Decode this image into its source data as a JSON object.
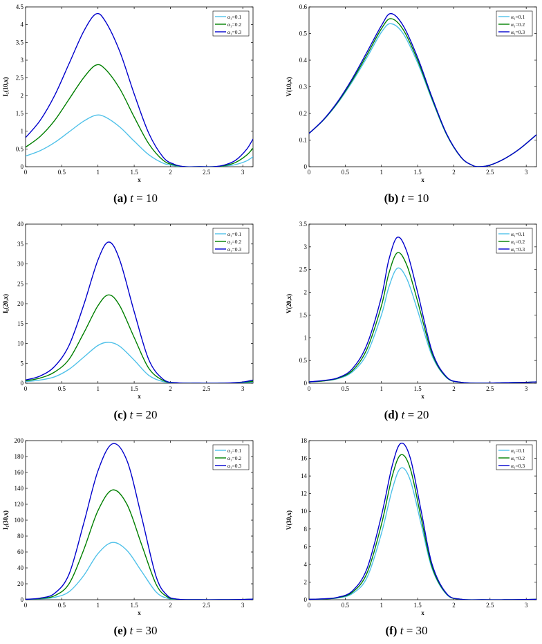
{
  "figure": {
    "colors": {
      "alpha_0_1": "#4fc1e9",
      "alpha_0_2": "#007f00",
      "alpha_0_3": "#0000cc"
    }
  },
  "chart_data": [
    {
      "id": "a",
      "type": "line",
      "ylabel": "I₁(10,x)",
      "xlabel": "x",
      "xlim": [
        0,
        3.1416
      ],
      "ylim": [
        0,
        4.5
      ],
      "xticks": [
        "0",
        "0.5",
        "1",
        "1.5",
        "2",
        "2.5",
        "3"
      ],
      "yticks": [
        "0",
        "0.5",
        "1",
        "1.5",
        "2",
        "2.5",
        "3",
        "3.5",
        "4",
        "4.5"
      ],
      "legend": [
        "α₁=0.1",
        "α₁=0.2",
        "α₁=0.3"
      ],
      "legend_position": "top-right",
      "caption": {
        "label": "(a)",
        "var": "t",
        "eq": "= 10"
      },
      "x": [
        0,
        0.2,
        0.4,
        0.6,
        0.8,
        0.97,
        1.1,
        1.3,
        1.5,
        1.7,
        1.9,
        2.05,
        2.2,
        2.4,
        2.6,
        2.75,
        2.9,
        3.05,
        3.1416
      ],
      "series": [
        {
          "name": "α₁=0.1",
          "values": [
            0.3,
            0.45,
            0.68,
            0.98,
            1.28,
            1.45,
            1.4,
            1.12,
            0.72,
            0.34,
            0.1,
            0.03,
            0.0,
            0.0,
            0.0,
            0.02,
            0.06,
            0.16,
            0.28
          ]
        },
        {
          "name": "α₁=0.2",
          "values": [
            0.55,
            0.85,
            1.3,
            1.9,
            2.5,
            2.86,
            2.75,
            2.2,
            1.4,
            0.65,
            0.18,
            0.05,
            0.0,
            0.0,
            0.0,
            0.03,
            0.12,
            0.32,
            0.52
          ]
        },
        {
          "name": "α₁=0.3",
          "values": [
            0.82,
            1.3,
            2.0,
            2.9,
            3.8,
            4.3,
            4.1,
            3.25,
            2.05,
            0.95,
            0.27,
            0.07,
            0.0,
            0.0,
            0.0,
            0.05,
            0.18,
            0.48,
            0.78
          ]
        }
      ]
    },
    {
      "id": "b",
      "type": "line",
      "ylabel": "V(10,x)",
      "xlabel": "x",
      "xlim": [
        0,
        3.1416
      ],
      "ylim": [
        0,
        0.6
      ],
      "xticks": [
        "0",
        "0.5",
        "1",
        "1.5",
        "2",
        "2.5",
        "3"
      ],
      "yticks": [
        "0",
        "0.1",
        "0.2",
        "0.3",
        "0.4",
        "0.5",
        "0.6"
      ],
      "legend": [
        "α₁=0.1",
        "α₁=0.2",
        "α₁=0.3"
      ],
      "legend_position": "top-right",
      "caption": {
        "label": "(b)",
        "var": "t",
        "eq": "= 10"
      },
      "x": [
        0,
        0.2,
        0.4,
        0.6,
        0.8,
        1.0,
        1.13,
        1.3,
        1.5,
        1.7,
        1.9,
        2.1,
        2.25,
        2.35,
        2.5,
        2.7,
        2.9,
        3.1416
      ],
      "series": [
        {
          "name": "α₁=0.1",
          "values": [
            0.125,
            0.175,
            0.24,
            0.32,
            0.41,
            0.505,
            0.537,
            0.5,
            0.39,
            0.25,
            0.12,
            0.035,
            0.006,
            0.0,
            0.006,
            0.03,
            0.065,
            0.12
          ]
        },
        {
          "name": "α₁=0.2",
          "values": [
            0.125,
            0.176,
            0.243,
            0.326,
            0.42,
            0.518,
            0.556,
            0.515,
            0.4,
            0.255,
            0.122,
            0.035,
            0.006,
            0.0,
            0.006,
            0.03,
            0.065,
            0.12
          ]
        },
        {
          "name": "α₁=0.3",
          "values": [
            0.125,
            0.177,
            0.246,
            0.332,
            0.43,
            0.53,
            0.575,
            0.53,
            0.41,
            0.26,
            0.124,
            0.036,
            0.006,
            0.0,
            0.006,
            0.03,
            0.065,
            0.12
          ]
        }
      ]
    },
    {
      "id": "c",
      "type": "line",
      "ylabel": "I₁(20,x)",
      "xlabel": "x",
      "xlim": [
        0,
        3.1416
      ],
      "ylim": [
        0,
        40
      ],
      "xticks": [
        "0",
        "0.5",
        "1",
        "1.5",
        "2",
        "2.5",
        "3"
      ],
      "yticks": [
        "0",
        "5",
        "10",
        "15",
        "20",
        "25",
        "30",
        "35",
        "40"
      ],
      "legend": [
        "α₁=0.1",
        "α₁=0.2",
        "α₁=0.3"
      ],
      "legend_position": "top-right",
      "caption": {
        "label": "(c)",
        "var": "t",
        "eq": "= 20"
      },
      "x": [
        0,
        0.2,
        0.4,
        0.6,
        0.8,
        1.0,
        1.15,
        1.3,
        1.5,
        1.7,
        1.9,
        2.1,
        2.4,
        2.7,
        3.0,
        3.1416
      ],
      "series": [
        {
          "name": "α₁=0.1",
          "values": [
            0.4,
            0.8,
            1.6,
            3.5,
            6.5,
            9.5,
            10.3,
            9.3,
            5.8,
            2.0,
            0.4,
            0.05,
            0.0,
            0.0,
            0.1,
            0.3
          ]
        },
        {
          "name": "α₁=0.2",
          "values": [
            0.6,
            1.3,
            2.8,
            6.0,
            12.5,
            19.5,
            22.2,
            19.5,
            11.5,
            3.8,
            0.7,
            0.08,
            0.0,
            0.0,
            0.2,
            0.5
          ]
        },
        {
          "name": "α₁=0.3",
          "values": [
            0.8,
            1.8,
            4.2,
            9.5,
            19.5,
            31.0,
            35.5,
            31.0,
            18.0,
            6.0,
            1.0,
            0.1,
            0.0,
            0.0,
            0.3,
            0.8
          ]
        }
      ]
    },
    {
      "id": "d",
      "type": "line",
      "ylabel": "V(20,x)",
      "xlabel": "x",
      "xlim": [
        0,
        3.1416
      ],
      "ylim": [
        0,
        3.5
      ],
      "xticks": [
        "0",
        "0.5",
        "1",
        "1.5",
        "2",
        "2.5",
        "3"
      ],
      "yticks": [
        "0",
        "0.5",
        "1",
        "1.5",
        "2",
        "2.5",
        "3",
        "3.5"
      ],
      "legend": [
        "α₁=0.1",
        "α₁=0.2",
        "α₁=0.3"
      ],
      "legend_position": "top-right",
      "caption": {
        "label": "(d)",
        "var": "t",
        "eq": "= 20"
      },
      "x": [
        0,
        0.2,
        0.4,
        0.6,
        0.8,
        1.0,
        1.1,
        1.22,
        1.35,
        1.5,
        1.7,
        1.9,
        2.1,
        2.4,
        2.7,
        3.0,
        3.1416
      ],
      "series": [
        {
          "name": "α₁=0.1",
          "values": [
            0.03,
            0.05,
            0.1,
            0.25,
            0.65,
            1.5,
            2.1,
            2.53,
            2.3,
            1.6,
            0.6,
            0.12,
            0.02,
            0.0,
            0.01,
            0.02,
            0.03
          ]
        },
        {
          "name": "α₁=0.2",
          "values": [
            0.03,
            0.05,
            0.11,
            0.28,
            0.75,
            1.7,
            2.4,
            2.87,
            2.6,
            1.8,
            0.65,
            0.13,
            0.02,
            0.0,
            0.01,
            0.02,
            0.03
          ]
        },
        {
          "name": "α₁=0.3",
          "values": [
            0.03,
            0.06,
            0.12,
            0.32,
            0.85,
            1.9,
            2.7,
            3.21,
            2.9,
            2.0,
            0.7,
            0.14,
            0.02,
            0.0,
            0.01,
            0.02,
            0.03
          ]
        }
      ]
    },
    {
      "id": "e",
      "type": "line",
      "ylabel": "I₁(30,x)",
      "xlabel": "x",
      "xlim": [
        0,
        3.1416
      ],
      "ylim": [
        0,
        200
      ],
      "xticks": [
        "0",
        "0.5",
        "1",
        "1.5",
        "2",
        "2.5",
        "3"
      ],
      "yticks": [
        "0",
        "20",
        "40",
        "60",
        "80",
        "100",
        "120",
        "140",
        "160",
        "180",
        "200"
      ],
      "legend": [
        "α₁=0.1",
        "α₁=0.2",
        "α₁=0.3"
      ],
      "legend_position": "top-right",
      "caption": {
        "label": "(e)",
        "var": "t",
        "eq": "= 30"
      },
      "x": [
        0,
        0.2,
        0.4,
        0.6,
        0.8,
        1.0,
        1.2,
        1.4,
        1.6,
        1.8,
        1.95,
        2.1,
        2.4,
        2.7,
        3.0,
        3.1416
      ],
      "series": [
        {
          "name": "α₁=0.1",
          "values": [
            0.5,
            1.0,
            3.0,
            10.0,
            30.0,
            58.0,
            72.0,
            62.0,
            36.0,
            10.0,
            2.0,
            0.3,
            0.0,
            0.0,
            0.3,
            0.8
          ]
        },
        {
          "name": "α₁=0.2",
          "values": [
            0.5,
            1.5,
            5.0,
            20.0,
            62.0,
            112.0,
            138.0,
            120.0,
            70.0,
            20.0,
            4.0,
            0.5,
            0.0,
            0.0,
            0.3,
            0.8
          ]
        },
        {
          "name": "α₁=0.3",
          "values": [
            0.5,
            2.0,
            8.0,
            32.0,
            95.0,
            162.0,
            196.0,
            175.0,
            105.0,
            30.0,
            6.0,
            0.7,
            0.0,
            0.0,
            0.3,
            0.8
          ]
        }
      ]
    },
    {
      "id": "f",
      "type": "line",
      "ylabel": "V(30,x)",
      "xlabel": "x",
      "xlim": [
        0,
        3.1416
      ],
      "ylim": [
        0,
        18
      ],
      "xticks": [
        "0",
        "0.5",
        "1",
        "1.5",
        "2",
        "2.5",
        "3"
      ],
      "yticks": [
        "0",
        "2",
        "4",
        "6",
        "8",
        "10",
        "12",
        "14",
        "16",
        "18"
      ],
      "legend": [
        "α₁=0.1",
        "α₁=0.2",
        "α₁=0.3"
      ],
      "legend_position": "top-right",
      "caption": {
        "label": "(f)",
        "var": "t",
        "eq": "= 30"
      },
      "x": [
        0,
        0.2,
        0.4,
        0.6,
        0.8,
        1.0,
        1.15,
        1.27,
        1.4,
        1.55,
        1.7,
        1.9,
        2.1,
        2.4,
        2.7,
        3.0,
        3.1416
      ],
      "series": [
        {
          "name": "α₁=0.1",
          "values": [
            0.05,
            0.08,
            0.2,
            0.7,
            2.5,
            7.5,
            12.5,
            14.9,
            13.5,
            8.5,
            3.5,
            0.6,
            0.05,
            0.0,
            0.0,
            0.02,
            0.05
          ]
        },
        {
          "name": "α₁=0.2",
          "values": [
            0.05,
            0.09,
            0.24,
            0.85,
            3.0,
            8.5,
            14.0,
            16.4,
            14.8,
            9.2,
            3.7,
            0.65,
            0.05,
            0.0,
            0.0,
            0.02,
            0.05
          ]
        },
        {
          "name": "α₁=0.3",
          "values": [
            0.05,
            0.1,
            0.28,
            1.0,
            3.5,
            9.5,
            15.2,
            17.7,
            16.0,
            10.0,
            4.0,
            0.7,
            0.05,
            0.0,
            0.0,
            0.02,
            0.05
          ]
        }
      ]
    }
  ]
}
